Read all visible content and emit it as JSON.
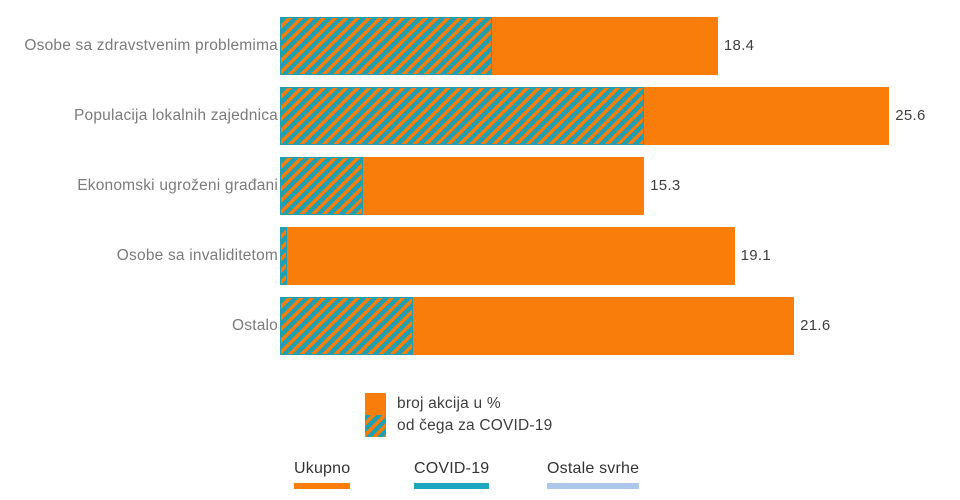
{
  "chart_data": {
    "type": "bar",
    "orientation": "horizontal",
    "title": "",
    "categories": [
      "Osobe sa zdravstvenim problemima",
      "Populacija lokalnih zajednica",
      "Ekonomski ugroženi građani",
      "Osobe sa invaliditetom",
      "Ostalo"
    ],
    "series": [
      {
        "name": "broj akcija u %",
        "style": "solid-orange",
        "values": [
          18.4,
          25.6,
          15.3,
          19.1,
          21.6
        ]
      },
      {
        "name": "od čega za COVID-19",
        "style": "hatched-teal-orange",
        "values": [
          8.9,
          15.3,
          3.5,
          0.3,
          5.6
        ]
      }
    ],
    "value_labels": [
      "18.4",
      "25.6",
      "15.3",
      "19.1",
      "21.6"
    ],
    "xlim": [
      0,
      27
    ],
    "grid": false,
    "legend_position": "bottom-center"
  },
  "legend": {
    "items": [
      {
        "label": "broj akcija u %",
        "swatch": "solid"
      },
      {
        "label": "od čega za COVID-19",
        "swatch": "hatched"
      }
    ]
  },
  "footer_links": [
    {
      "label": "Ukupno",
      "color": "#F87D0B"
    },
    {
      "label": "COVID-19",
      "color": "#1CA7BE"
    },
    {
      "label": "Ostale svrhe",
      "color": "#ABC8E8"
    }
  ],
  "colors": {
    "bar_orange": "#F87D0B",
    "hatch_teal": "#219FAE",
    "hatch_orange": "#F87D0B",
    "category_label": "#7B7B7B",
    "value_label": "#3F3F3F",
    "footer_text": "#333333",
    "background": "#FFFFFF"
  }
}
